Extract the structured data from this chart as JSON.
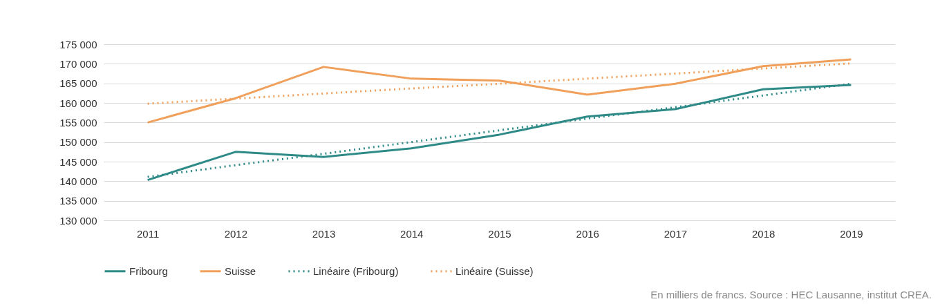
{
  "chart_data": {
    "type": "line",
    "categories": [
      "2011",
      "2012",
      "2013",
      "2014",
      "2015",
      "2016",
      "2017",
      "2018",
      "2019"
    ],
    "series": [
      {
        "name": "Fribourg",
        "color": "#2e8a87",
        "line_style": "solid",
        "values": [
          140300,
          147500,
          146200,
          148400,
          151900,
          156500,
          158400,
          163500,
          164600
        ]
      },
      {
        "name": "Suisse",
        "color": "#f0a05a",
        "line_style": "solid",
        "values": [
          155000,
          161200,
          169200,
          166200,
          165700,
          162100,
          164900,
          169400,
          171100
        ]
      },
      {
        "name": "Linéaire (Fribourg)",
        "color": "#2e8a87",
        "line_style": "dotted",
        "values": [
          141100,
          144100,
          147000,
          150000,
          153000,
          156000,
          158900,
          161900,
          164900
        ]
      },
      {
        "name": "Linéaire (Suisse)",
        "color": "#f0a05a",
        "line_style": "dotted",
        "values": [
          159800,
          161100,
          162400,
          163700,
          164900,
          166200,
          167500,
          168800,
          170100
        ]
      }
    ],
    "ylim": [
      130000,
      175000
    ],
    "yticks": [
      {
        "value": 130000,
        "label": "130 000"
      },
      {
        "value": 135000,
        "label": "135 000"
      },
      {
        "value": 140000,
        "label": "140 000"
      },
      {
        "value": 145000,
        "label": "145 000"
      },
      {
        "value": 150000,
        "label": "150 000"
      },
      {
        "value": 155000,
        "label": "155 000"
      },
      {
        "value": 160000,
        "label": "160 000"
      },
      {
        "value": 165000,
        "label": "165 000"
      },
      {
        "value": 170000,
        "label": "170 000"
      },
      {
        "value": 175000,
        "label": "175 000"
      }
    ],
    "grid": "y",
    "legend": "bottom",
    "marker": "none",
    "annotations": [
      "En milliers de francs. Source : HEC Lausanne, institut CREA."
    ]
  }
}
